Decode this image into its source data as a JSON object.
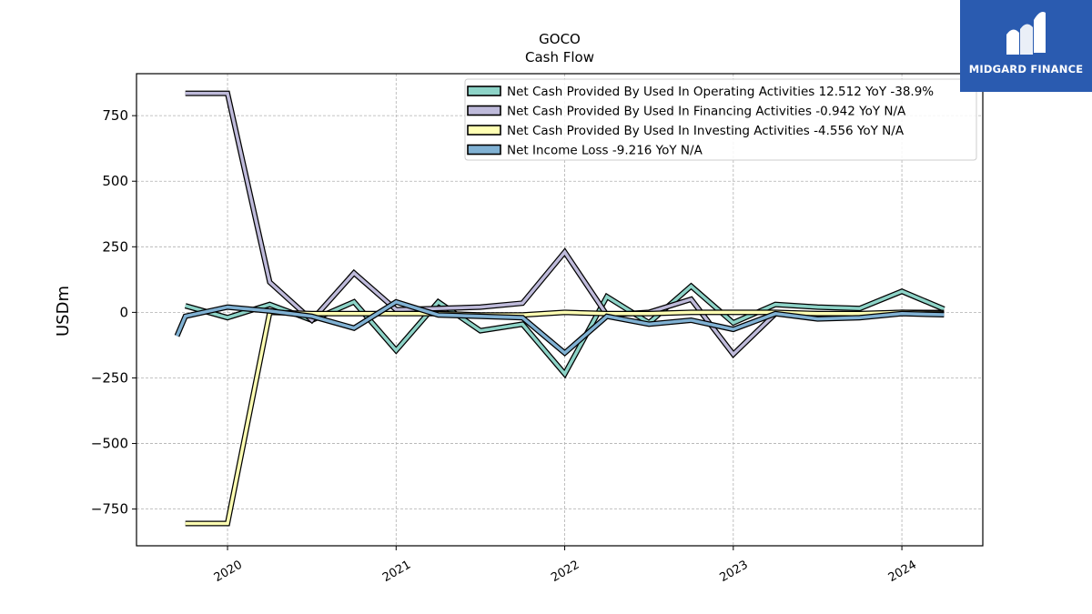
{
  "chart_data": {
    "type": "line",
    "title": "GOCO",
    "subtitle": "Cash Flow",
    "xlabel": "",
    "ylabel": "USDm",
    "ylim": [
      -890,
      910
    ],
    "yticks": [
      -750,
      -500,
      -250,
      0,
      250,
      500,
      750
    ],
    "ytick_labels": [
      "−750",
      "−500",
      "−250",
      "0",
      "250",
      "500",
      "750"
    ],
    "xlim": [
      2019.46,
      2024.48
    ],
    "xticks": [
      2020,
      2021,
      2022,
      2023,
      2024
    ],
    "xtick_labels": [
      "2020",
      "2021",
      "2022",
      "2023",
      "2024"
    ],
    "grid": true,
    "legend_position": "top-right",
    "x": [
      2019.75,
      2020.0,
      2020.25,
      2020.5,
      2020.75,
      2021.0,
      2021.25,
      2021.5,
      2021.75,
      2022.0,
      2022.25,
      2022.5,
      2022.75,
      2023.0,
      2023.25,
      2023.5,
      2023.75,
      2024.0,
      2024.25
    ],
    "series": [
      {
        "name": "Net Cash Provided By Used In Operating Activities  12.512 YoY -38.9%",
        "color": "#8dd3c7",
        "values": [
          25,
          -20,
          30,
          -30,
          40,
          -145,
          40,
          -70,
          -45,
          -235,
          60,
          -40,
          100,
          -40,
          30,
          20,
          15,
          80,
          12.5
        ]
      },
      {
        "name": "Net Cash Provided By Used In Financing Activities  -0.942 YoY N/A",
        "color": "#bebada",
        "values": [
          835,
          835,
          115,
          -30,
          150,
          10,
          15,
          20,
          35,
          230,
          -10,
          0,
          50,
          -160,
          -5,
          -15,
          -10,
          0,
          -0.9
        ]
      },
      {
        "name": "Net Cash Provided By Used In Investing Activities  -4.556 YoY N/A",
        "color": "#ffffb3",
        "values": [
          -805,
          -805,
          0,
          -5,
          -5,
          -5,
          -5,
          -10,
          -10,
          0,
          -5,
          -5,
          0,
          0,
          0,
          -5,
          -5,
          0,
          -4.6
        ]
      },
      {
        "name": "Net Income Loss  -9.216 YoY N/A",
        "color": "#80b1d3",
        "values": [
          -15,
          20,
          5,
          -15,
          -60,
          40,
          -10,
          -15,
          -20,
          -155,
          -15,
          -45,
          -30,
          -65,
          -5,
          -25,
          -20,
          -5,
          -9.2
        ]
      }
    ],
    "first_point_extra": {
      "series": "Net Income Loss  -9.216 YoY N/A",
      "x": 2019.7,
      "y": -90
    }
  },
  "logo": {
    "text": "MIDGARD FINANCE",
    "bg": "#2a5bb0"
  }
}
